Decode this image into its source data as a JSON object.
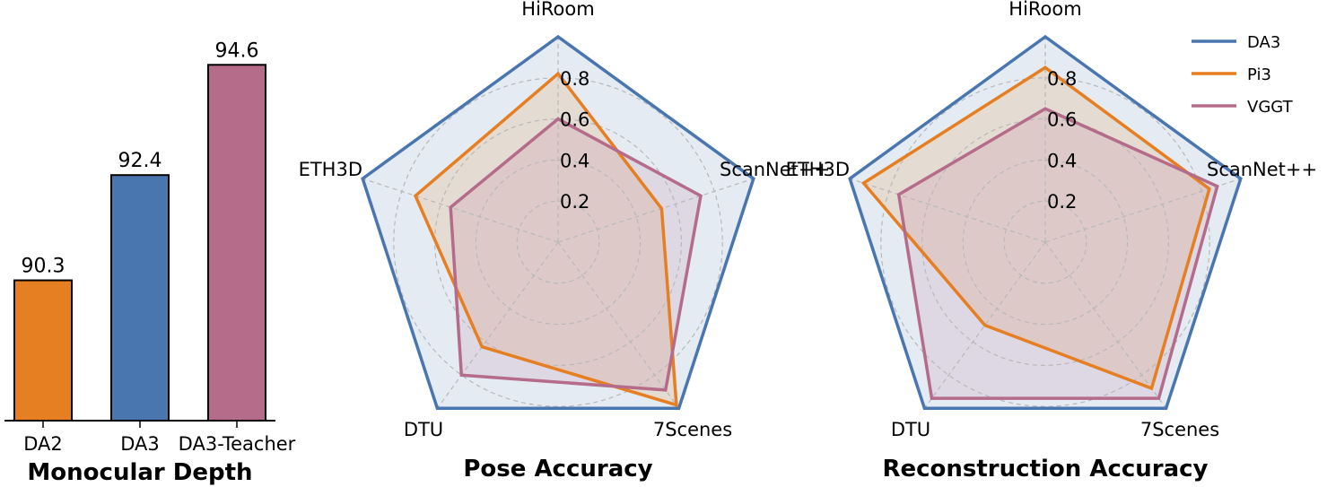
{
  "chart_data": [
    {
      "type": "bar",
      "title": "Monocular Depth",
      "categories": [
        "DA2",
        "DA3",
        "DA3-Teacher"
      ],
      "values": [
        90.3,
        92.4,
        94.6
      ],
      "value_labels": [
        "90.3",
        "92.4",
        "94.6"
      ],
      "colors": [
        "#e67e22",
        "#4a76b0",
        "#b56b8a"
      ],
      "ylim": [
        87.5,
        95.5
      ],
      "grid": false
    },
    {
      "type": "radar",
      "title": "Pose Accuracy",
      "axes": [
        "HiRoom",
        "ScanNet++",
        "7Scenes",
        "DTU",
        "ETH3D"
      ],
      "rings": [
        0.2,
        0.4,
        0.6,
        0.8
      ],
      "ring_labels": [
        "0.2",
        "0.4",
        "0.6",
        "0.8"
      ],
      "rmax": 1.0,
      "grid": true,
      "series": [
        {
          "name": "DA3",
          "values": [
            1.0,
            1.0,
            1.0,
            1.0,
            1.0
          ]
        },
        {
          "name": "Pi3",
          "values": [
            0.82,
            0.53,
            0.98,
            0.63,
            0.73
          ]
        },
        {
          "name": "VGGT",
          "values": [
            0.6,
            0.73,
            0.89,
            0.8,
            0.55
          ]
        }
      ]
    },
    {
      "type": "radar",
      "title": "Reconstruction Accuracy",
      "axes": [
        "HiRoom",
        "ScanNet++",
        "7Scenes",
        "DTU",
        "ETH3D"
      ],
      "rings": [
        0.2,
        0.4,
        0.6,
        0.8
      ],
      "ring_labels": [
        "0.2",
        "0.4",
        "0.6",
        "0.8"
      ],
      "rmax": 1.0,
      "grid": true,
      "series": [
        {
          "name": "DA3",
          "values": [
            1.0,
            1.0,
            1.0,
            1.0,
            1.0
          ]
        },
        {
          "name": "Pi3",
          "values": [
            0.85,
            0.84,
            0.88,
            0.5,
            0.93
          ]
        },
        {
          "name": "VGGT",
          "values": [
            0.65,
            0.88,
            0.94,
            0.94,
            0.75
          ]
        }
      ]
    }
  ],
  "legend": {
    "placement": "top-right",
    "entries": [
      {
        "name": "DA3",
        "color": "#4a76b0"
      },
      {
        "name": "Pi3",
        "color": "#e67e22"
      },
      {
        "name": "VGGT",
        "color": "#b56b8a"
      }
    ]
  }
}
